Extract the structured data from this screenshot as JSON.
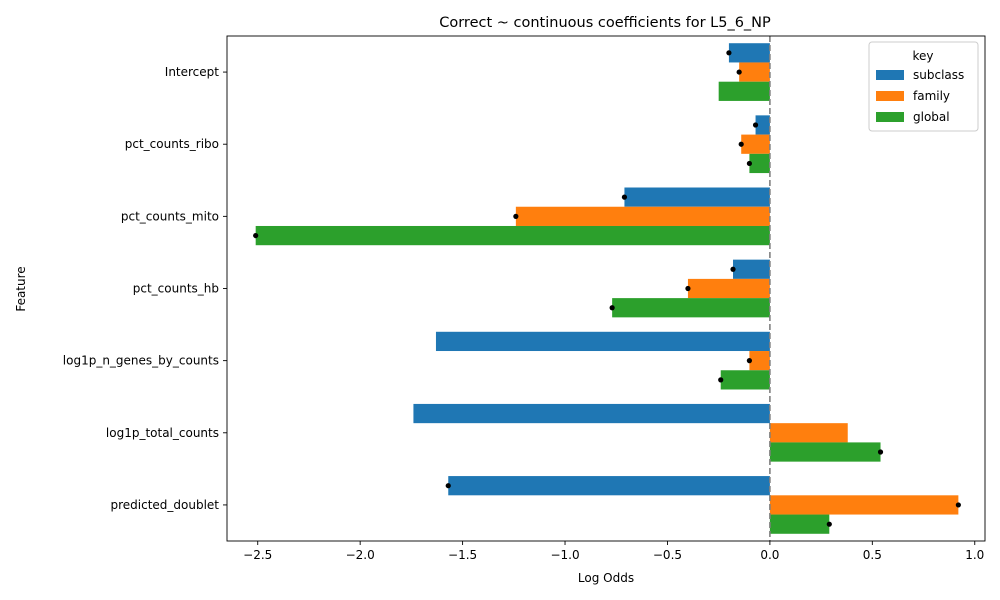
{
  "chart_data": {
    "type": "bar",
    "orientation": "horizontal",
    "title": "Correct ~ continuous coefficients for L5_6_NP",
    "xlabel": "Log Odds",
    "ylabel": "Feature",
    "xlim": [
      -2.65,
      1.05
    ],
    "xticks": [
      -2.5,
      -2.0,
      -1.5,
      -1.0,
      -0.5,
      0.0,
      0.5,
      1.0
    ],
    "xtick_labels": [
      "−2.5",
      "−2.0",
      "−1.5",
      "−1.0",
      "−0.5",
      "0.0",
      "0.5",
      "1.0"
    ],
    "categories": [
      "Intercept",
      "pct_counts_ribo",
      "pct_counts_mito",
      "pct_counts_hb",
      "log1p_n_genes_by_counts",
      "log1p_total_counts",
      "predicted_doublet"
    ],
    "legend": {
      "title": "key",
      "placement": "top-right"
    },
    "reference_line": {
      "x": 0.0,
      "style": "dashed",
      "color": "#808080"
    },
    "series": [
      {
        "name": "subclass",
        "color": "#1f77b4",
        "values": [
          -0.2,
          -0.07,
          -0.71,
          -0.18,
          -1.63,
          -1.74,
          -1.57
        ],
        "marker": [
          true,
          true,
          true,
          true,
          false,
          false,
          true
        ]
      },
      {
        "name": "family",
        "color": "#ff7f0e",
        "values": [
          -0.15,
          -0.14,
          -1.24,
          -0.4,
          -0.1,
          0.38,
          0.92
        ],
        "marker": [
          true,
          true,
          true,
          true,
          true,
          false,
          true
        ]
      },
      {
        "name": "global",
        "color": "#2ca02c",
        "values": [
          -0.25,
          -0.1,
          -2.51,
          -0.77,
          -0.24,
          0.54,
          0.29
        ],
        "marker": [
          false,
          true,
          true,
          true,
          true,
          true,
          true
        ]
      }
    ]
  }
}
